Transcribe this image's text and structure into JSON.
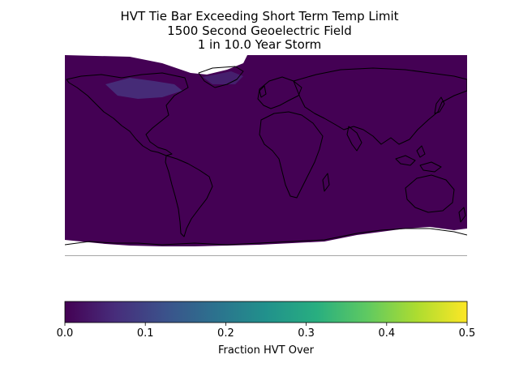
{
  "title": {
    "line1": "HVT Tie Bar Exceeding Short Term Temp Limit",
    "line2": "1500 Second Geoelectric Field",
    "line3": "1 in 10.0 Year Storm"
  },
  "colorbar": {
    "label": "Fraction HVT Over",
    "min": 0.0,
    "max": 0.5,
    "ticks": [
      "0.0",
      "0.1",
      "0.2",
      "0.3",
      "0.4",
      "0.5"
    ],
    "colormap": "viridis",
    "colors": [
      "#440154",
      "#3b528b",
      "#21918c",
      "#5ec962",
      "#fde725"
    ]
  },
  "map": {
    "projection": "plate-carree",
    "fill_color": "#440154",
    "highlight_color": "#46337e",
    "coastline_color": "#000000"
  }
}
